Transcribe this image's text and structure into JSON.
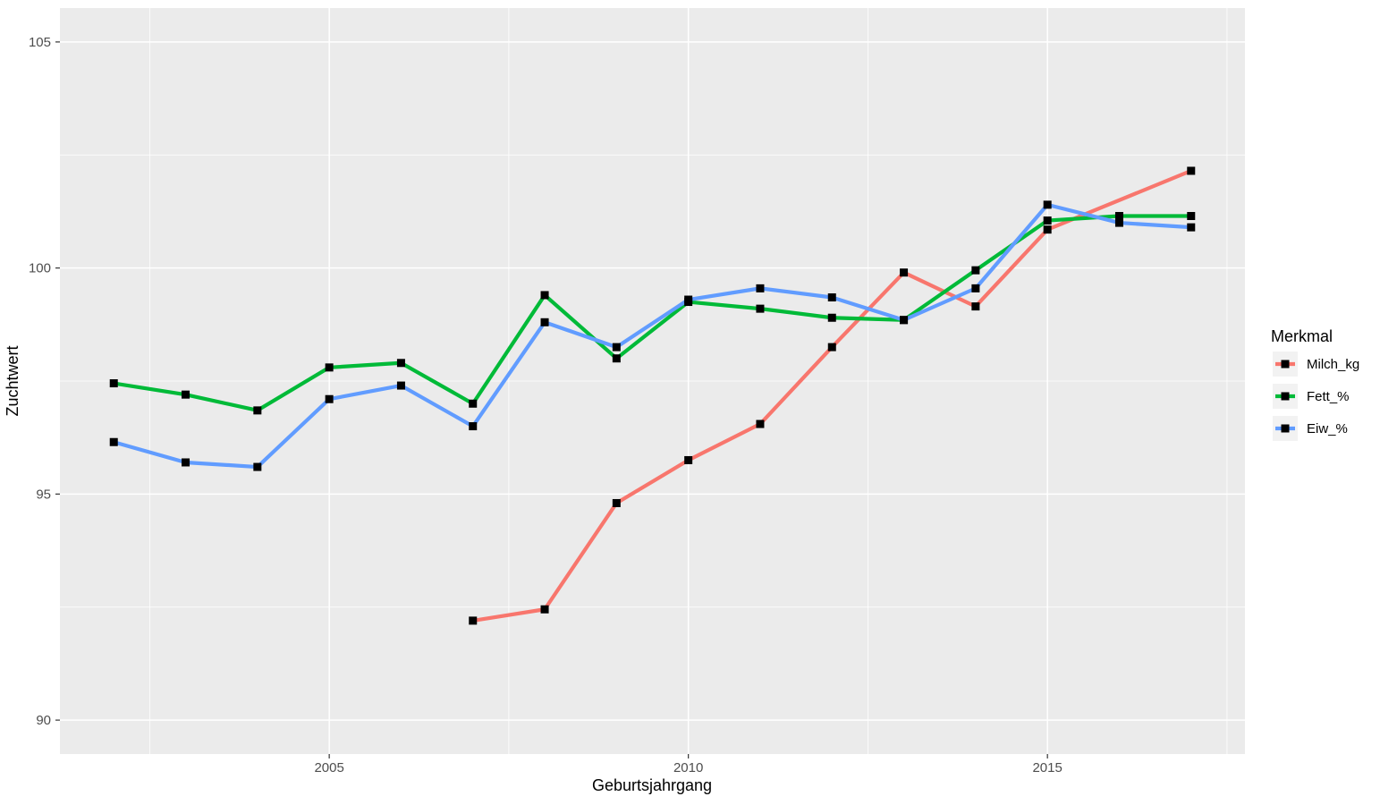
{
  "chart_data": {
    "type": "line",
    "title": "",
    "xlabel": "Geburtsjahrgang",
    "ylabel": "Zuchtwert",
    "legend_title": "Merkmal",
    "legend_position": "right",
    "grid": true,
    "panel_bg": "#EBEBEB",
    "grid_color": "#FFFFFF",
    "tick_color": "#333333",
    "tick_label_color": "#4D4D4D",
    "marker_color": "#000000",
    "legend_key_bg": "#F2F2F2",
    "x_range": [
      2001.25,
      2017.75
    ],
    "y_range": [
      89.25,
      105.75
    ],
    "x_ticks": [
      2005,
      2010,
      2015
    ],
    "y_ticks": [
      90,
      95,
      100,
      105
    ],
    "x_minor_ticks": [
      2002.5,
      2007.5,
      2012.5,
      2017.5
    ],
    "y_minor_ticks": [
      92.5,
      97.5,
      102.5
    ],
    "series": [
      {
        "name": "Milch_kg",
        "color": "#F8766D",
        "x": [
          2007,
          2008,
          2009,
          2010,
          2011,
          2012,
          2013,
          2014,
          2015,
          2017
        ],
        "y": [
          92.2,
          92.45,
          94.8,
          95.75,
          96.55,
          98.25,
          99.9,
          99.15,
          100.85,
          102.15
        ]
      },
      {
        "name": "Fett_%",
        "color": "#00BA38",
        "x": [
          2002,
          2003,
          2004,
          2005,
          2006,
          2007,
          2008,
          2009,
          2010,
          2011,
          2012,
          2013,
          2014,
          2015,
          2016,
          2017
        ],
        "y": [
          97.45,
          97.2,
          96.85,
          97.8,
          97.9,
          97.0,
          99.4,
          98.0,
          99.25,
          99.1,
          98.9,
          98.85,
          99.95,
          101.05,
          101.15,
          101.15
        ]
      },
      {
        "name": "Eiw_%",
        "color": "#619CFF",
        "x": [
          2002,
          2003,
          2004,
          2005,
          2006,
          2007,
          2008,
          2009,
          2010,
          2011,
          2012,
          2013,
          2014,
          2015,
          2016,
          2017
        ],
        "y": [
          96.15,
          95.7,
          95.6,
          97.1,
          97.4,
          96.5,
          98.8,
          98.25,
          99.3,
          99.55,
          99.35,
          98.85,
          99.55,
          101.4,
          101.0,
          100.9
        ]
      }
    ]
  }
}
